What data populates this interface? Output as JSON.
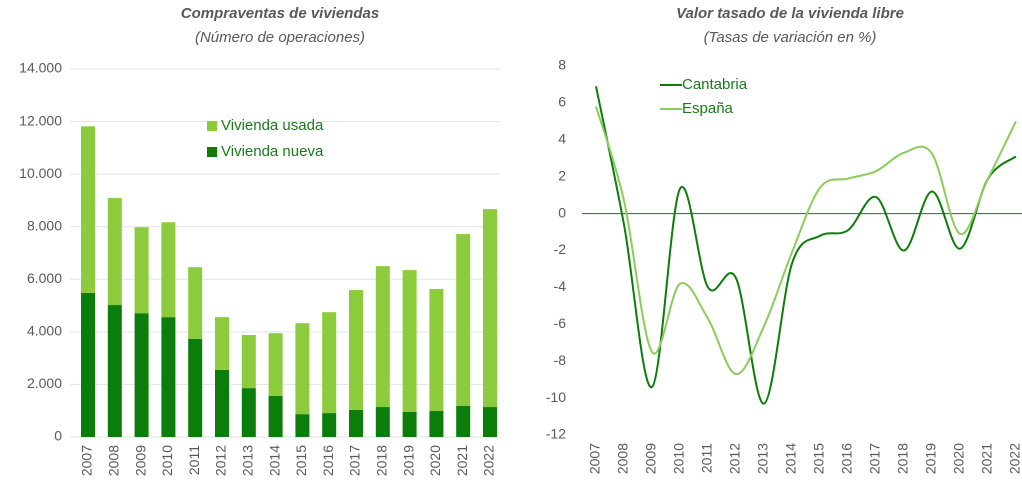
{
  "chart_data": [
    {
      "type": "bar",
      "stacked": true,
      "title": "Compraventas de viviendas",
      "subtitle": "(Número de operaciones)",
      "categories": [
        "2007",
        "2008",
        "2009",
        "2010",
        "2011",
        "2012",
        "2013",
        "2014",
        "2015",
        "2016",
        "2017",
        "2018",
        "2019",
        "2020",
        "2021",
        "2022"
      ],
      "series": [
        {
          "name": "Vivienda nueva",
          "color": "#0b7d0b",
          "values": [
            5480,
            5020,
            4710,
            4560,
            3730,
            2550,
            1860,
            1560,
            870,
            910,
            1030,
            1140,
            950,
            990,
            1180,
            1140
          ]
        },
        {
          "name": "Vivienda usada",
          "color": "#8ccc3c",
          "values": [
            6340,
            4070,
            3270,
            3610,
            2730,
            2010,
            2020,
            2390,
            3460,
            3840,
            4560,
            5360,
            5400,
            4640,
            6540,
            7530
          ]
        }
      ],
      "ylim": [
        0,
        14000
      ],
      "yticks": [
        0,
        {
          "value": 2000,
          "label": "2.000"
        },
        {
          "value": 4000,
          "label": "4.000"
        },
        {
          "value": 6000,
          "label": "6.000"
        },
        {
          "value": 8000,
          "label": "8.000"
        },
        {
          "value": 10000,
          "label": "10.000"
        },
        {
          "value": 12000,
          "label": "12.000"
        },
        {
          "value": 14000,
          "label": "14.000"
        }
      ],
      "grid": true
    },
    {
      "type": "line",
      "title": "Valor tasado de la vivienda libre",
      "subtitle": "(Tasas de variación en %)",
      "categories": [
        "2007",
        "2008",
        "2009",
        "2010",
        "2011",
        "2012",
        "2013",
        "2014",
        "2015",
        "2016",
        "2017",
        "2018",
        "2019",
        "2020",
        "2021",
        "2022"
      ],
      "series": [
        {
          "name": "Cantabria",
          "color": "#0b7d0b",
          "values": [
            6.9,
            -0.6,
            -9.4,
            1.35,
            -4.0,
            -3.5,
            -10.3,
            -2.7,
            -1.2,
            -0.9,
            0.9,
            -2.0,
            1.2,
            -1.9,
            1.9,
            3.1
          ]
        },
        {
          "name": "España",
          "color": "#8ccc5a",
          "values": [
            5.8,
            0.7,
            -7.5,
            -3.8,
            -5.7,
            -8.7,
            -6.1,
            -2.1,
            1.4,
            1.9,
            2.3,
            3.3,
            3.25,
            -1.1,
            1.9,
            5.0
          ]
        }
      ],
      "ylim": [
        -12,
        8
      ],
      "yticks": [
        -12,
        -10,
        -8,
        -6,
        -4,
        -2,
        0,
        2,
        4,
        6,
        8
      ],
      "grid": false
    }
  ]
}
